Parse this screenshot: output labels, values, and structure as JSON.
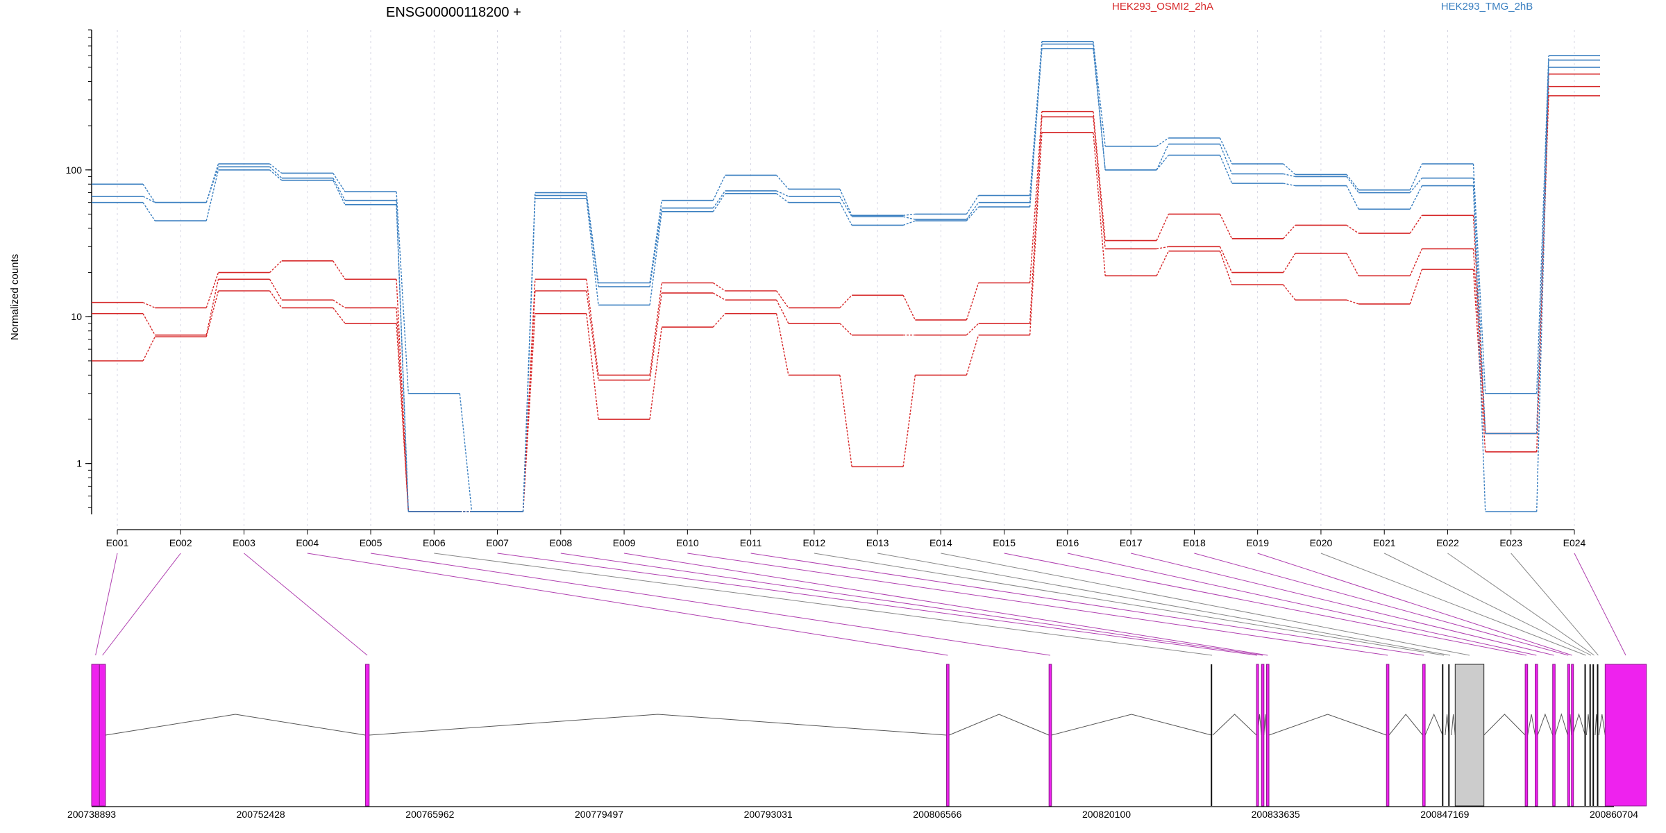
{
  "chart_data": {
    "type": "line",
    "title": "ENSG00000118200 +",
    "ylabel": "Normalized counts",
    "xlabel": "",
    "yscale": "log",
    "ylim": [
      0.45,
      900
    ],
    "y_ticks": [
      {
        "value": 1,
        "label": "1"
      },
      {
        "value": 10,
        "label": "10"
      },
      {
        "value": 100,
        "label": "100"
      }
    ],
    "grid": "vertical-dashed",
    "legend_placement": "top",
    "categories": [
      "E001",
      "E002",
      "E003",
      "E004",
      "E005",
      "E006",
      "E007",
      "E008",
      "E009",
      "E010",
      "E011",
      "E012",
      "E013",
      "E014",
      "E015",
      "E016",
      "E017",
      "E018",
      "E019",
      "E020",
      "E021",
      "E022",
      "E023",
      "E024"
    ],
    "groups": [
      {
        "name": "HEK293_OSMI2_2hA",
        "color": "#d62728"
      },
      {
        "name": "HEK293_TMG_2hB",
        "color": "#3a7fc0"
      }
    ],
    "series": [
      {
        "group": 0,
        "values": [
          12.5,
          11.5,
          20,
          24,
          18,
          0.47,
          0.47,
          18,
          4,
          17,
          15,
          11.5,
          14,
          9.5,
          17,
          250,
          33,
          50,
          34,
          42,
          37,
          49,
          1.6,
          450
        ]
      },
      {
        "group": 0,
        "values": [
          10.5,
          7.5,
          18,
          13,
          11.5,
          0.47,
          0.47,
          15,
          3.7,
          14.5,
          13,
          9,
          7.5,
          7.5,
          9,
          230,
          29,
          30,
          20,
          27,
          19,
          29,
          1.6,
          370
        ]
      },
      {
        "group": 0,
        "values": [
          5,
          7.3,
          15,
          11.5,
          9,
          0.47,
          0.47,
          10.5,
          2,
          8.5,
          10.5,
          4,
          0.95,
          4,
          7.5,
          180,
          19,
          28,
          16.5,
          13,
          12.2,
          21,
          1.2,
          320
        ]
      },
      {
        "group": 1,
        "values": [
          80,
          60,
          110,
          95,
          71,
          3,
          0.47,
          70,
          17,
          62,
          92,
          74,
          49,
          50,
          67,
          750,
          145,
          165,
          110,
          93,
          73,
          110,
          3,
          600
        ]
      },
      {
        "group": 1,
        "values": [
          66,
          60,
          105,
          88,
          62,
          0.47,
          0.47,
          67,
          16,
          55,
          72,
          66,
          48,
          46,
          60,
          720,
          100,
          150,
          94,
          90,
          70,
          88,
          1.6,
          560
        ]
      },
      {
        "group": 1,
        "values": [
          60,
          45,
          100,
          85,
          58,
          0.47,
          0.47,
          64,
          12,
          52,
          69,
          60,
          42,
          45,
          56,
          670,
          100,
          126,
          81,
          78,
          54,
          78,
          0.47,
          500
        ]
      }
    ],
    "gene_model": {
      "coordinate_ticks": [
        "200738893",
        "200752428",
        "200765962",
        "200779497",
        "200793031",
        "200806566",
        "200820100",
        "200833635",
        "200847169",
        "200860704"
      ],
      "range": [
        200738893,
        200860704
      ],
      "exon_color": "#ee22ee",
      "nonexpressed_exon_color": "#aaaaaa",
      "exons": [
        {
          "id": "E001",
          "start": 200738893,
          "end": 200739520,
          "highlight": true
        },
        {
          "id": "E002",
          "start": 200739520,
          "end": 200740000,
          "highlight": true
        },
        {
          "id": "E003",
          "start": 200760800,
          "end": 200761100,
          "highlight": true
        },
        {
          "id": "E004",
          "start": 200807300,
          "end": 200807500,
          "highlight": true
        },
        {
          "id": "E005",
          "start": 200815500,
          "end": 200815700,
          "highlight": true
        },
        {
          "id": "E006",
          "start": 200828500,
          "end": 200828600,
          "highlight": false
        },
        {
          "id": "E007",
          "start": 200832100,
          "end": 200832200,
          "highlight": true
        },
        {
          "id": "E008",
          "start": 200832500,
          "end": 200832700,
          "highlight": true
        },
        {
          "id": "E009",
          "start": 200832900,
          "end": 200833100,
          "highlight": true
        },
        {
          "id": "E010",
          "start": 200842500,
          "end": 200842700,
          "highlight": true
        },
        {
          "id": "E011",
          "start": 200845400,
          "end": 200845600,
          "highlight": true
        },
        {
          "id": "E012",
          "start": 200847000,
          "end": 200847200,
          "highlight": false
        },
        {
          "id": "E013",
          "start": 200847500,
          "end": 200847700,
          "highlight": false
        },
        {
          "id": "E014",
          "start": 200848000,
          "end": 200850300,
          "highlight": false
        },
        {
          "id": "E015",
          "start": 200853600,
          "end": 200853800,
          "highlight": true
        },
        {
          "id": "E016",
          "start": 200854400,
          "end": 200854600,
          "highlight": true
        },
        {
          "id": "E017",
          "start": 200855800,
          "end": 200856000,
          "highlight": true
        },
        {
          "id": "E018",
          "start": 200857000,
          "end": 200857100,
          "highlight": true
        },
        {
          "id": "E019",
          "start": 200857300,
          "end": 200857400,
          "highlight": true
        },
        {
          "id": "E020",
          "start": 200858400,
          "end": 200858500,
          "highlight": false
        },
        {
          "id": "E021",
          "start": 200858800,
          "end": 200858950,
          "highlight": false
        },
        {
          "id": "E022",
          "start": 200859050,
          "end": 200859200,
          "highlight": false
        },
        {
          "id": "E023",
          "start": 200859400,
          "end": 200859500,
          "highlight": false
        },
        {
          "id": "E024",
          "start": 200860000,
          "end": 200863300,
          "highlight": true
        }
      ]
    }
  }
}
